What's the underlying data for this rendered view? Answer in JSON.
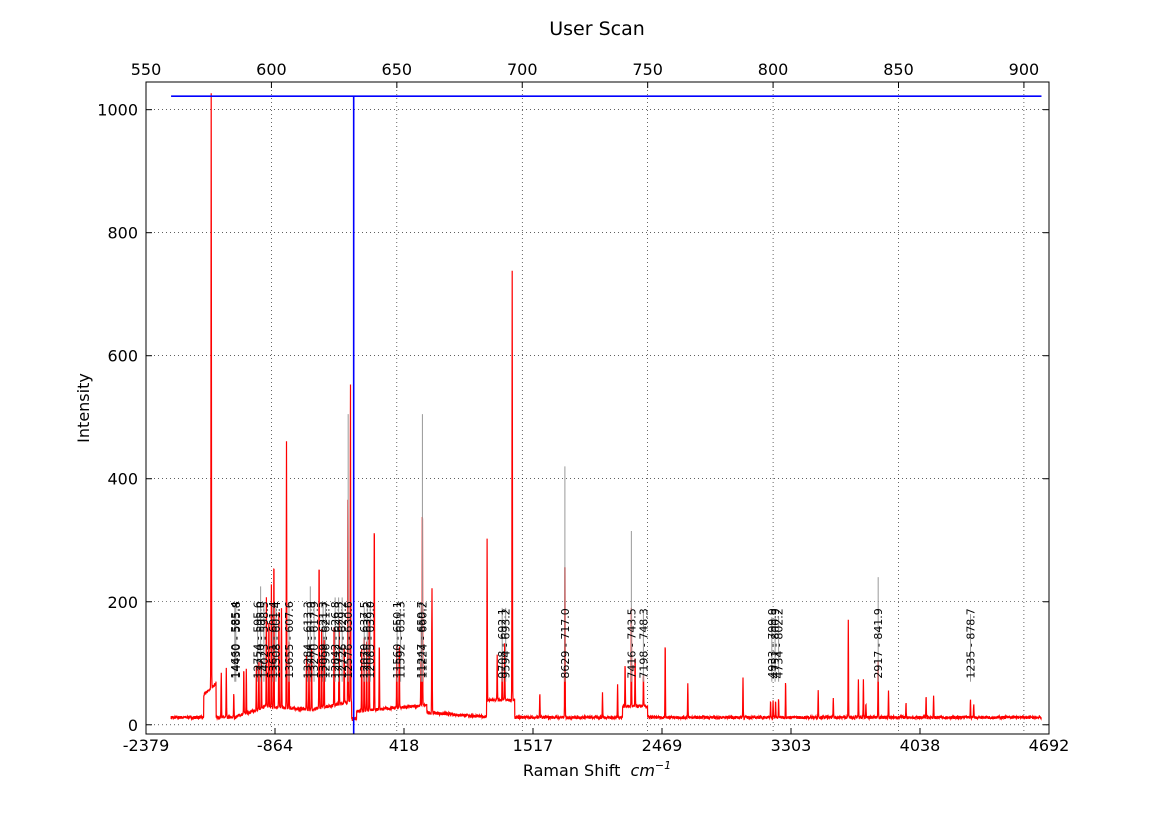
{
  "chart_data": {
    "type": "line",
    "title": "User Scan",
    "xlabel": "Raman Shift",
    "xlabel_unit": "cm",
    "xlabel_unit_exp": "−1",
    "ylabel": "Intensity",
    "grid": true,
    "ylim": [
      -15,
      1045
    ],
    "bottom_axis": {
      "ticks": [
        -2379,
        -864,
        418,
        1517,
        2469,
        3303,
        4038,
        4692
      ]
    },
    "top_axis": {
      "xlim": [
        550,
        910
      ],
      "ticks": [
        550,
        600,
        650,
        700,
        750,
        800,
        850,
        900
      ]
    },
    "y_ticks": [
      0,
      200,
      400,
      600,
      800,
      1000
    ],
    "wavelength_range": [
      560,
      907
    ],
    "colors": {
      "spectrum": "#ff0000",
      "marker": "#0000ff",
      "peak_line": "#999999"
    },
    "marker": {
      "wavelength": 632.8,
      "level": 1022
    },
    "spectrum_peaks": [
      [
        576,
        965
      ],
      [
        580,
        75
      ],
      [
        582,
        78
      ],
      [
        585,
        40
      ],
      [
        589,
        75
      ],
      [
        590,
        70
      ],
      [
        594,
        75
      ],
      [
        595,
        85
      ],
      [
        596,
        80
      ],
      [
        598,
        180
      ],
      [
        599,
        150
      ],
      [
        600,
        200
      ],
      [
        601,
        250
      ],
      [
        603,
        170
      ],
      [
        604,
        160
      ],
      [
        606,
        435
      ],
      [
        607,
        120
      ],
      [
        614,
        90
      ],
      [
        615,
        85
      ],
      [
        616,
        100
      ],
      [
        619,
        248
      ],
      [
        620,
        130
      ],
      [
        621,
        120
      ],
      [
        625,
        140
      ],
      [
        627,
        150
      ],
      [
        629,
        100
      ],
      [
        630.5,
        340
      ],
      [
        631.5,
        530
      ],
      [
        636,
        100
      ],
      [
        637,
        130
      ],
      [
        638,
        110
      ],
      [
        639,
        160
      ],
      [
        641,
        318
      ],
      [
        643,
        110
      ],
      [
        650,
        100
      ],
      [
        651,
        110
      ],
      [
        659.6,
        70
      ],
      [
        660.2,
        340
      ],
      [
        664,
        205
      ],
      [
        686,
        262
      ],
      [
        690,
        75
      ],
      [
        692,
        70
      ],
      [
        693,
        100
      ],
      [
        696,
        698
      ],
      [
        707,
        40
      ],
      [
        717,
        270
      ],
      [
        732,
        40
      ],
      [
        738,
        55
      ],
      [
        741,
        70
      ],
      [
        743.5,
        165
      ],
      [
        745,
        85
      ],
      [
        748.3,
        55
      ],
      [
        757,
        125
      ],
      [
        766,
        55
      ],
      [
        788,
        65
      ],
      [
        799,
        25
      ],
      [
        800,
        28
      ],
      [
        801,
        28
      ],
      [
        802.2,
        30
      ],
      [
        805,
        60
      ],
      [
        818,
        45
      ],
      [
        824,
        32
      ],
      [
        830,
        157
      ],
      [
        834,
        60
      ],
      [
        836,
        62
      ],
      [
        837,
        20
      ],
      [
        841.9,
        95
      ],
      [
        846,
        42
      ],
      [
        853,
        25
      ],
      [
        861,
        35
      ],
      [
        864,
        35
      ],
      [
        878.7,
        28
      ],
      [
        880,
        20
      ]
    ],
    "peak_labels": [
      {
        "text": "14660 - 585.4",
        "x": 585.4,
        "top": 210
      },
      {
        "text": "14430 - 585.8",
        "x": 585.8,
        "top": 210
      },
      {
        "text": "12754 - 595.6",
        "x": 594.5,
        "top": 215
      },
      {
        "text": "13270 - 595.0",
        "x": 595.7,
        "top": 240
      },
      {
        "text": "14023 - 598.5",
        "x": 597.0,
        "top": 210
      },
      {
        "text": "13631 - 601.4",
        "x": 600.6,
        "top": 212
      },
      {
        "text": "13508 - 601.4",
        "x": 601.8,
        "top": 212
      },
      {
        "text": "13655 - 607.6",
        "x": 607.0,
        "top": 215
      },
      {
        "text": "13284 - 613.3",
        "x": 614.4,
        "top": 215
      },
      {
        "text": "13286 - 613.9",
        "x": 615.5,
        "top": 240
      },
      {
        "text": "13270 - 617.9",
        "x": 617.0,
        "top": 212
      },
      {
        "text": "13059 - 621.3",
        "x": 620.6,
        "top": 212
      },
      {
        "text": "12996 - 621.7",
        "x": 621.6,
        "top": 212
      },
      {
        "text": "12842 - 626.8",
        "x": 625.4,
        "top": 222
      },
      {
        "text": "12732 - 628.3",
        "x": 626.8,
        "top": 222
      },
      {
        "text": "12726 - 629.2",
        "x": 628.2,
        "top": 222
      },
      {
        "text": "12576 - 630.6",
        "x": 630.6,
        "top": 520
      },
      {
        "text": "12070 - 637.5",
        "x": 637.0,
        "top": 205
      },
      {
        "text": "12025 - 638.2",
        "x": 638.2,
        "top": 205
      },
      {
        "text": "12085 - 639.0",
        "x": 639.4,
        "top": 205
      },
      {
        "text": "11560 - 650.1",
        "x": 650.1,
        "top": 180
      },
      {
        "text": "11592 - 651.3",
        "x": 651.5,
        "top": 200
      },
      {
        "text": "11247 - 659.7",
        "x": 659.7,
        "top": 210
      },
      {
        "text": "11224 - 660.2",
        "x": 660.2,
        "top": 520
      },
      {
        "text": "9708 - 692.1",
        "x": 692.0,
        "top": 205
      },
      {
        "text": "9594 - 693.2",
        "x": 693.4,
        "top": 205
      },
      {
        "text": "8629 - 717.0",
        "x": 717.0,
        "top": 435
      },
      {
        "text": "7416 - 743.5",
        "x": 743.5,
        "top": 330
      },
      {
        "text": "7198 - 748.3",
        "x": 748.3,
        "top": 200
      },
      {
        "text": "4933 - 799.9",
        "x": 799.5,
        "top": 190
      },
      {
        "text": "4751 - 800.9",
        "x": 800.8,
        "top": 190
      },
      {
        "text": "4734 - 802.2",
        "x": 802.2,
        "top": 190
      },
      {
        "text": "2917 - 841.9",
        "x": 841.9,
        "top": 255
      },
      {
        "text": "1235 - 878.7",
        "x": 878.7,
        "top": 195
      }
    ]
  }
}
